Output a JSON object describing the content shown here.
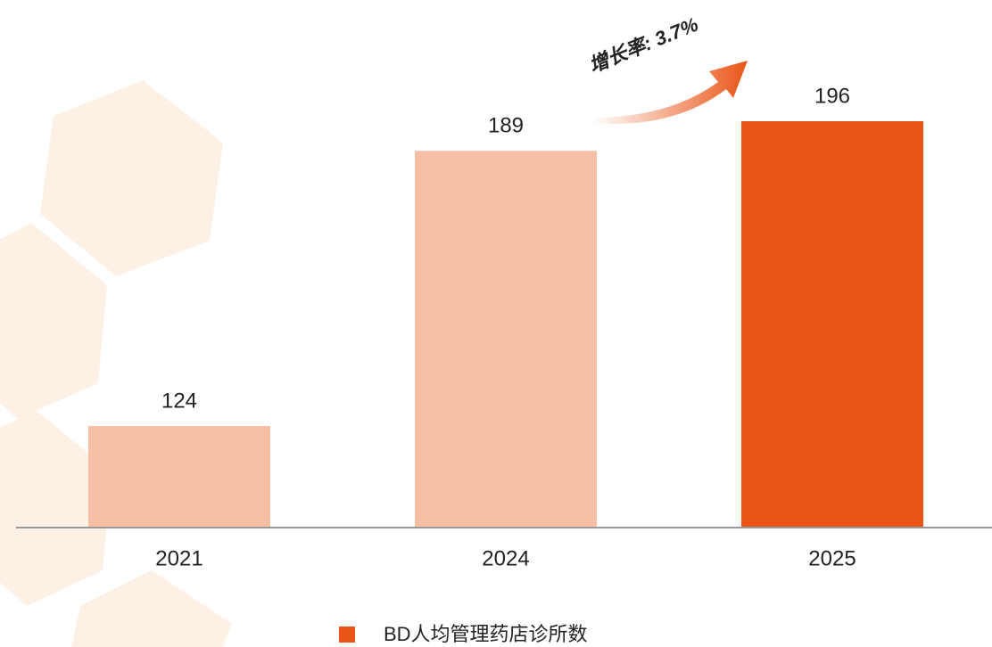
{
  "chart_data": {
    "type": "bar",
    "categories": [
      "2021",
      "2024",
      "2025"
    ],
    "series": [
      {
        "name": "BD人均管理药店诊所数",
        "color": "#e95516",
        "values": [
          124,
          189,
          196
        ]
      }
    ],
    "bar_colors": [
      "#f5bea5",
      "#f5bea5",
      "#e95516"
    ],
    "annotation": "增长率: 3.7%",
    "ylim": [
      100,
      220
    ]
  }
}
